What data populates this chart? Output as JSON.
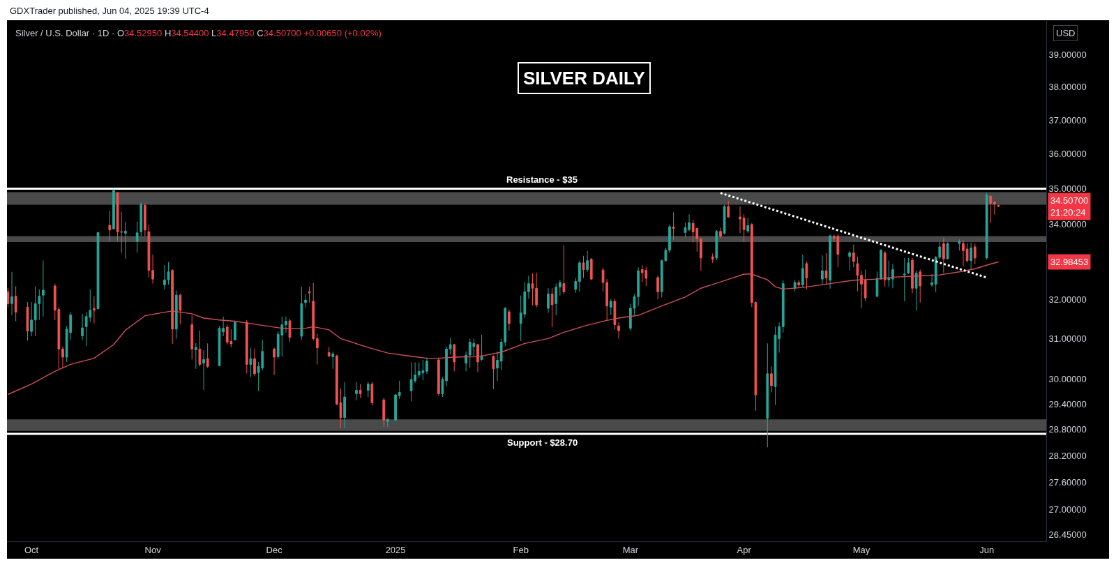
{
  "chart_data": {
    "type": "candlestick",
    "title": "SILVER DAILY",
    "subtitle": "Silver / U.S. Dollar · 1D · O34.52950 H34.54400 L34.47950 C34.50700 +0.00650 (+0.02%)",
    "annotations": [
      "GDXTrader published, Jun 04, 2025 19:39 UTC-4",
      "USD",
      "34.50700\n21:20:24",
      "32.98453"
    ],
    "x": [
      "2024-09-25",
      "2024-09-26",
      "2024-09-27",
      "2024-09-30",
      "2024-10-01",
      "2024-10-02",
      "2024-10-03",
      "2024-10-04",
      "2024-10-07",
      "2024-10-08",
      "2024-10-09",
      "2024-10-10",
      "2024-10-11",
      "2024-10-14",
      "2024-10-15",
      "2024-10-16",
      "2024-10-17",
      "2024-10-18",
      "2024-10-21",
      "2024-10-22",
      "2024-10-23",
      "2024-10-24",
      "2024-10-25",
      "2024-10-28",
      "2024-10-29",
      "2024-10-30",
      "2024-10-31",
      "2024-11-01",
      "2024-11-04",
      "2024-11-05",
      "2024-11-06",
      "2024-11-07",
      "2024-11-08",
      "2024-11-11",
      "2024-11-12",
      "2024-11-13",
      "2024-11-14",
      "2024-11-15",
      "2024-11-18",
      "2024-11-19",
      "2024-11-20",
      "2024-11-21",
      "2024-11-22",
      "2024-11-25",
      "2024-11-26",
      "2024-11-27",
      "2024-11-28",
      "2024-11-29",
      "2024-12-02",
      "2024-12-03",
      "2024-12-04",
      "2024-12-05",
      "2024-12-06",
      "2024-12-09",
      "2024-12-10",
      "2024-12-11",
      "2024-12-12",
      "2024-12-13",
      "2024-12-16",
      "2024-12-17",
      "2024-12-18",
      "2024-12-19",
      "2024-12-20",
      "2024-12-23",
      "2024-12-24",
      "2024-12-26",
      "2024-12-27",
      "2024-12-30",
      "2024-12-31",
      "2025-01-02",
      "2025-01-03",
      "2025-01-06",
      "2025-01-07",
      "2025-01-08",
      "2025-01-09",
      "2025-01-10",
      "2025-01-13",
      "2025-01-14",
      "2025-01-15",
      "2025-01-16",
      "2025-01-17",
      "2025-01-20",
      "2025-01-21",
      "2025-01-22",
      "2025-01-23",
      "2025-01-24",
      "2025-01-27",
      "2025-01-28",
      "2025-01-29",
      "2025-01-30",
      "2025-01-31",
      "2025-02-03",
      "2025-02-04",
      "2025-02-05",
      "2025-02-06",
      "2025-02-07",
      "2025-02-10",
      "2025-02-11",
      "2025-02-12",
      "2025-02-13",
      "2025-02-14",
      "2025-02-17",
      "2025-02-18",
      "2025-02-19",
      "2025-02-20",
      "2025-02-21",
      "2025-02-24",
      "2025-02-25",
      "2025-02-26",
      "2025-02-27",
      "2025-02-28",
      "2025-03-03",
      "2025-03-04",
      "2025-03-05",
      "2025-03-06",
      "2025-03-07",
      "2025-03-10",
      "2025-03-11",
      "2025-03-12",
      "2025-03-13",
      "2025-03-14",
      "2025-03-17",
      "2025-03-18",
      "2025-03-19",
      "2025-03-20",
      "2025-03-21",
      "2025-03-24",
      "2025-03-25",
      "2025-03-26",
      "2025-03-27",
      "2025-03-28",
      "2025-03-31",
      "2025-04-01",
      "2025-04-02",
      "2025-04-03",
      "2025-04-04",
      "2025-04-07",
      "2025-04-08",
      "2025-04-09",
      "2025-04-10",
      "2025-04-11",
      "2025-04-14",
      "2025-04-15",
      "2025-04-16",
      "2025-04-17",
      "2025-04-21",
      "2025-04-22",
      "2025-04-23",
      "2025-04-24",
      "2025-04-25",
      "2025-04-28",
      "2025-04-29",
      "2025-04-30",
      "2025-05-01",
      "2025-05-02",
      "2025-05-05",
      "2025-05-06",
      "2025-05-07",
      "2025-05-08",
      "2025-05-09",
      "2025-05-12",
      "2025-05-13",
      "2025-05-14",
      "2025-05-15",
      "2025-05-16",
      "2025-05-19",
      "2025-05-20",
      "2025-05-21",
      "2025-05-22",
      "2025-05-23",
      "2025-05-26",
      "2025-05-27",
      "2025-05-28",
      "2025-05-29",
      "2025-05-30",
      "2025-06-02",
      "2025-06-03",
      "2025-06-04",
      "2025-06-05"
    ],
    "ohlc": [
      [
        32.2,
        32.3,
        31.8,
        31.89
      ],
      [
        31.89,
        32.72,
        31.59,
        32.07
      ],
      [
        32.08,
        32.34,
        31.44,
        31.67
      ],
      [
        31.8,
        31.93,
        30.95,
        31.19
      ],
      [
        31.18,
        31.93,
        31.06,
        31.47
      ],
      [
        31.47,
        32.34,
        31.06,
        31.89
      ],
      [
        31.89,
        32.26,
        31.47,
        32.08
      ],
      [
        32.11,
        33.02,
        31.56,
        32.24
      ],
      [
        32.35,
        32.41,
        31.47,
        31.72
      ],
      [
        31.74,
        31.8,
        30.25,
        30.74
      ],
      [
        30.74,
        30.8,
        30.27,
        30.54
      ],
      [
        30.54,
        31.32,
        30.42,
        31.24
      ],
      [
        31.15,
        31.67,
        30.97,
        31.6
      ],
      [
        31.07,
        31.62,
        30.97,
        31.27
      ],
      [
        31.3,
        31.67,
        30.81,
        31.56
      ],
      [
        31.54,
        32.26,
        31.42,
        31.72
      ],
      [
        31.76,
        32.08,
        31.38,
        31.72
      ],
      [
        31.76,
        33.8,
        31.74,
        33.78
      ],
      [
        33.98,
        34.38,
        33.55,
        33.85
      ],
      [
        33.88,
        34.98,
        33.86,
        34.95
      ],
      [
        34.89,
        34.89,
        33.55,
        33.8
      ],
      [
        33.8,
        34.35,
        33.23,
        33.79
      ],
      [
        33.76,
        34.08,
        33.07,
        33.82
      ],
      [
        33.54,
        34.08,
        33.23,
        33.77
      ],
      [
        33.8,
        34.62,
        33.68,
        34.56
      ],
      [
        34.53,
        34.6,
        33.68,
        33.85
      ],
      [
        33.8,
        33.99,
        32.58,
        32.76
      ],
      [
        32.76,
        33.18,
        32.41,
        32.53
      ],
      [
        32.38,
        32.9,
        32.26,
        32.51
      ],
      [
        32.51,
        32.98,
        32.38,
        32.72
      ],
      [
        32.76,
        32.79,
        30.87,
        31.24
      ],
      [
        31.24,
        32.23,
        31.0,
        32.11
      ],
      [
        32.11,
        32.14,
        31.36,
        31.72
      ],
      [
        31.35,
        31.59,
        30.48,
        30.74
      ],
      [
        30.72,
        30.89,
        30.25,
        30.78
      ],
      [
        30.74,
        31.21,
        30.31,
        30.36
      ],
      [
        30.39,
        30.71,
        29.74,
        30.48
      ],
      [
        30.5,
        30.88,
        30.27,
        30.31
      ],
      [
        30.33,
        31.32,
        30.31,
        31.26
      ],
      [
        31.17,
        31.56,
        31.06,
        31.26
      ],
      [
        31.29,
        31.35,
        30.85,
        30.91
      ],
      [
        30.93,
        31.24,
        30.78,
        30.87
      ],
      [
        30.97,
        31.44,
        30.95,
        31.41
      ],
      [
        31.41,
        31.47,
        30.14,
        30.36
      ],
      [
        30.36,
        30.77,
        30.05,
        30.5
      ],
      [
        30.5,
        30.75,
        30.07,
        30.13
      ],
      [
        30.16,
        30.42,
        29.71,
        30.31
      ],
      [
        30.27,
        30.97,
        30.22,
        30.68
      ],
      [
        30.74,
        30.77,
        30.1,
        30.54
      ],
      [
        30.55,
        31.18,
        30.5,
        31.11
      ],
      [
        31.09,
        31.56,
        30.55,
        31.35
      ],
      [
        31.35,
        31.56,
        31.15,
        31.44
      ],
      [
        31.45,
        31.5,
        30.91,
        31.03
      ],
      [
        31.06,
        32.33,
        30.97,
        31.89
      ],
      [
        31.92,
        32.13,
        31.79,
        31.98
      ],
      [
        32.2,
        32.34,
        31.92,
        32.17
      ],
      [
        31.95,
        32.43,
        30.95,
        31.0
      ],
      [
        31.0,
        31.12,
        30.36,
        30.77
      ],
      [
        30.65,
        30.79,
        30.54,
        30.57
      ],
      [
        30.55,
        30.68,
        30.25,
        30.62
      ],
      [
        30.57,
        30.6,
        29.37,
        29.4
      ],
      [
        29.43,
        29.77,
        28.83,
        29.08
      ],
      [
        29.08,
        29.93,
        28.83,
        29.57
      ],
      [
        29.65,
        29.93,
        29.49,
        29.73
      ],
      [
        29.73,
        29.88,
        29.54,
        29.65
      ],
      [
        29.73,
        29.93,
        29.56,
        29.88
      ],
      [
        29.88,
        29.93,
        29.37,
        29.43
      ],
      [
        29.5,
        29.55,
        28.86,
        29.02
      ],
      [
        28.99,
        29.06,
        28.86,
        29.04
      ],
      [
        29.02,
        29.65,
        28.99,
        29.62
      ],
      [
        29.6,
        29.96,
        29.52,
        29.68
      ],
      [
        29.72,
        30.41,
        29.47,
        29.99
      ],
      [
        29.96,
        30.41,
        29.91,
        30.1
      ],
      [
        30.1,
        30.41,
        30.03,
        30.19
      ],
      [
        30.15,
        30.47,
        29.97,
        30.2
      ],
      [
        30.19,
        30.53,
        30.13,
        30.44
      ],
      [
        30.47,
        30.53,
        29.6,
        29.65
      ],
      [
        29.65,
        30.05,
        29.57,
        29.99
      ],
      [
        29.96,
        30.8,
        29.83,
        30.74
      ],
      [
        30.74,
        31.02,
        30.6,
        30.85
      ],
      [
        30.85,
        30.87,
        30.19,
        30.42
      ],
      [
        30.39,
        30.68,
        30.19,
        30.59
      ],
      [
        30.59,
        31.0,
        30.28,
        30.91
      ],
      [
        30.8,
        31.0,
        30.57,
        30.88
      ],
      [
        30.85,
        30.87,
        30.17,
        30.42
      ],
      [
        30.48,
        31.1,
        30.45,
        30.57
      ],
      [
        30.56,
        30.58,
        29.76,
        30.25
      ],
      [
        30.27,
        30.68,
        29.96,
        30.46
      ],
      [
        30.44,
        31.0,
        30.22,
        30.91
      ],
      [
        30.91,
        31.8,
        30.81,
        31.77
      ],
      [
        31.68,
        31.74,
        31.2,
        31.38
      ],
      [
        31.38,
        32.1,
        30.94,
        31.65
      ],
      [
        31.62,
        32.45,
        31.53,
        32.2
      ],
      [
        32.2,
        32.62,
        32.02,
        32.41
      ],
      [
        32.41,
        32.68,
        31.84,
        32.29
      ],
      [
        32.29,
        32.7,
        31.8,
        31.86
      ],
      [
        31.77,
        32.29,
        31.65,
        32.14
      ],
      [
        32.14,
        32.29,
        31.29,
        31.86
      ],
      [
        31.89,
        32.41,
        31.59,
        32.32
      ],
      [
        32.32,
        32.51,
        32.1,
        32.44
      ],
      [
        32.41,
        33.44,
        32.14,
        32.2
      ],
      [
        32.26,
        32.56,
        32.17,
        32.47
      ],
      [
        32.47,
        33.02,
        32.2,
        32.96
      ],
      [
        32.96,
        33.15,
        32.56,
        32.78
      ],
      [
        32.78,
        33.28,
        32.72,
        33.02
      ],
      [
        33.06,
        33.09,
        32.5,
        32.53
      ],
      [
        32.77,
        32.83,
        32.2,
        32.44
      ],
      [
        32.44,
        32.53,
        31.47,
        31.83
      ],
      [
        31.8,
        32.01,
        31.6,
        31.95
      ],
      [
        31.95,
        32.01,
        31.23,
        31.35
      ],
      [
        31.32,
        31.41,
        31.0,
        31.2
      ],
      [
        31.26,
        31.89,
        31.2,
        31.77
      ],
      [
        31.77,
        32.14,
        31.6,
        32.07
      ],
      [
        32.07,
        32.84,
        31.83,
        32.75
      ],
      [
        32.78,
        32.9,
        32.45,
        32.7
      ],
      [
        32.76,
        32.85,
        32.35,
        32.55
      ],
      [
        32.57,
        32.62,
        32.0,
        32.2
      ],
      [
        32.2,
        33.05,
        32.05,
        33.02
      ],
      [
        33.02,
        33.36,
        32.99,
        33.3
      ],
      [
        33.3,
        34.0,
        33.23,
        33.94
      ],
      [
        33.93,
        34.34,
        33.58,
        33.89
      ],
      [
        33.78,
        34.05,
        33.65,
        33.91
      ],
      [
        33.86,
        34.28,
        33.82,
        34.05
      ],
      [
        34.03,
        34.13,
        33.51,
        33.8
      ],
      [
        33.89,
        33.92,
        33.26,
        33.61
      ],
      [
        33.61,
        33.64,
        32.75,
        33.09
      ],
      [
        33.12,
        33.21,
        32.96,
        33.06
      ],
      [
        33.09,
        33.85,
        33.03,
        33.81
      ],
      [
        33.81,
        33.91,
        33.62,
        33.68
      ],
      [
        33.76,
        34.55,
        33.73,
        34.5
      ],
      [
        34.5,
        34.66,
        34.18,
        34.21
      ],
      [
        34.21,
        34.5,
        33.76,
        34.15
      ],
      [
        34.18,
        34.28,
        33.52,
        33.86
      ],
      [
        33.82,
        34.18,
        33.76,
        33.97
      ],
      [
        34.0,
        34.04,
        31.8,
        31.92
      ],
      [
        31.92,
        31.95,
        29.24,
        29.62
      ],
      [
        29.06,
        30.88,
        28.39,
        30.13
      ],
      [
        30.13,
        30.31,
        29.68,
        29.84
      ],
      [
        29.82,
        31.3,
        29.38,
        31.09
      ],
      [
        31.0,
        31.41,
        30.65,
        31.3
      ],
      [
        31.3,
        32.5,
        31.15,
        32.41
      ],
      [
        32.29,
        32.5,
        32.21,
        32.44
      ],
      [
        32.44,
        32.5,
        32.32,
        32.38
      ],
      [
        32.38,
        33.18,
        32.32,
        32.81
      ],
      [
        32.94,
        33.0,
        32.26,
        32.56
      ],
      [
        32.53,
        33.16,
        32.38,
        32.75
      ],
      [
        32.75,
        33.22,
        32.38,
        32.56
      ],
      [
        32.5,
        33.72,
        32.28,
        33.69
      ],
      [
        33.68,
        33.72,
        33.52,
        33.62
      ],
      [
        33.68,
        33.74,
        32.84,
        33.19
      ],
      [
        33.13,
        33.28,
        32.76,
        33.23
      ],
      [
        33.23,
        33.45,
        32.84,
        33.0
      ],
      [
        32.94,
        33.13,
        32.21,
        32.63
      ],
      [
        32.63,
        32.74,
        31.78,
        32.4
      ],
      [
        32.5,
        32.78,
        31.96,
        32.04
      ],
      [
        32.08,
        32.73,
        32.05,
        32.55
      ],
      [
        32.53,
        33.33,
        32.51,
        33.3
      ],
      [
        33.23,
        33.27,
        32.33,
        32.51
      ],
      [
        32.51,
        33.02,
        32.33,
        32.56
      ],
      [
        32.53,
        32.93,
        32.29,
        32.78
      ],
      [
        32.64,
        33.09,
        31.95,
        32.66
      ],
      [
        32.69,
        33.09,
        32.66,
        32.96
      ],
      [
        33.03,
        33.09,
        32.16,
        32.29
      ],
      [
        32.29,
        32.76,
        31.71,
        32.69
      ],
      [
        32.72,
        32.78,
        31.92,
        32.35
      ],
      [
        32.38,
        32.66,
        32.33,
        32.43
      ],
      [
        32.4,
        33.14,
        32.19,
        33.11
      ],
      [
        33.11,
        33.52,
        33.06,
        33.39
      ],
      [
        33.48,
        33.64,
        32.69,
        33.07
      ],
      [
        33.07,
        33.51,
        33.05,
        33.48
      ],
      [
        33.48,
        33.6,
        33.29,
        33.54
      ],
      [
        33.48,
        33.57,
        32.87,
        33.29
      ],
      [
        33.33,
        33.49,
        32.97,
        33.02
      ],
      [
        33.02,
        33.51,
        32.77,
        33.36
      ],
      [
        33.39,
        33.48,
        32.93,
        33.09
      ],
      [
        33.09,
        34.89,
        33.05,
        34.82
      ],
      [
        34.79,
        34.8,
        34.04,
        34.59
      ],
      [
        34.62,
        34.65,
        34.27,
        34.57
      ],
      [
        34.5295,
        34.544,
        34.4795,
        34.507
      ]
    ],
    "colors": [
      "#ef5350",
      "#26a69a",
      "#ef5350",
      "#ef5350",
      "#26a69a",
      "#26a69a",
      "#26a69a",
      "#26a69a",
      "#ef5350",
      "#ef5350",
      "#ef5350",
      "#26a69a",
      "#26a69a",
      "#26a69a",
      "#26a69a",
      "#26a69a",
      "#ef5350",
      "#26a69a",
      "#ef5350",
      "#26a69a",
      "#ef5350",
      "#ef5350",
      "#26a69a",
      "#26a69a",
      "#26a69a",
      "#ef5350",
      "#ef5350",
      "#ef5350",
      "#26a69a",
      "#26a69a",
      "#ef5350",
      "#26a69a",
      "#ef5350",
      "#ef5350",
      "#26a69a",
      "#ef5350",
      "#26a69a",
      "#ef5350",
      "#26a69a",
      "#26a69a",
      "#ef5350",
      "#ef5350",
      "#26a69a",
      "#ef5350",
      "#26a69a",
      "#ef5350",
      "#26a69a",
      "#26a69a",
      "#ef5350",
      "#26a69a",
      "#26a69a",
      "#26a69a",
      "#ef5350",
      "#26a69a",
      "#26a69a",
      "#ef5350",
      "#ef5350",
      "#ef5350",
      "#ef5350",
      "#26a69a",
      "#ef5350",
      "#ef5350",
      "#26a69a",
      "#26a69a",
      "#ef5350",
      "#26a69a",
      "#ef5350",
      "#ef5350",
      "#26a69a",
      "#26a69a",
      "#26a69a",
      "#26a69a",
      "#26a69a",
      "#26a69a",
      "#26a69a",
      "#26a69a",
      "#ef5350",
      "#26a69a",
      "#26a69a",
      "#26a69a",
      "#ef5350",
      "#26a69a",
      "#26a69a",
      "#26a69a",
      "#ef5350",
      "#26a69a",
      "#ef5350",
      "#26a69a",
      "#26a69a",
      "#26a69a",
      "#ef5350",
      "#26a69a",
      "#26a69a",
      "#26a69a",
      "#ef5350",
      "#ef5350",
      "#26a69a",
      "#ef5350",
      "#26a69a",
      "#26a69a",
      "#ef5350",
      "#26a69a",
      "#26a69a",
      "#ef5350",
      "#26a69a",
      "#ef5350",
      "#ef5350",
      "#ef5350",
      "#26a69a",
      "#ef5350",
      "#ef5350",
      "#26a69a",
      "#26a69a",
      "#26a69a",
      "#ef5350",
      "#ef5350",
      "#ef5350",
      "#26a69a",
      "#26a69a",
      "#26a69a",
      "#ef5350",
      "#26a69a",
      "#26a69a",
      "#ef5350",
      "#ef5350",
      "#ef5350",
      "#ef5350",
      "#26a69a",
      "#ef5350",
      "#26a69a",
      "#ef5350",
      "#ef5350",
      "#ef5350",
      "#26a69a",
      "#ef5350",
      "#ef5350",
      "#26a69a",
      "#ef5350",
      "#26a69a",
      "#26a69a",
      "#26a69a",
      "#26a69a",
      "#ef5350",
      "#26a69a",
      "#ef5350",
      "#26a69a",
      "#ef5350",
      "#26a69a",
      "#ef5350",
      "#ef5350",
      "#26a69a",
      "#ef5350",
      "#ef5350",
      "#ef5350",
      "#ef5350",
      "#26a69a",
      "#26a69a",
      "#ef5350",
      "#26a69a",
      "#26a69a",
      "#26a69a",
      "#26a69a",
      "#ef5350",
      "#26a69a",
      "#ef5350",
      "#26a69a",
      "#26a69a",
      "#26a69a",
      "#ef5350",
      "#26a69a",
      "#26a69a",
      "#ef5350",
      "#ef5350",
      "#26a69a",
      "#ef5350",
      "#26a69a",
      "#ef5350",
      "#ef5350",
      "#ef5350"
    ],
    "series": [
      {
        "type": "line",
        "color": "#d0505a",
        "x": [
          "2024-09-25",
          "2024-10-01",
          "2024-10-07",
          "2024-10-11",
          "2024-10-17",
          "2024-10-22",
          "2024-10-25",
          "2024-10-30",
          "2024-11-04",
          "2024-11-06",
          "2024-11-11",
          "2024-11-14",
          "2024-11-18",
          "2024-11-22",
          "2024-11-28",
          "2024-12-04",
          "2024-12-10",
          "2024-12-12",
          "2024-12-16",
          "2024-12-19",
          "2024-12-26",
          "2024-12-31",
          "2025-01-06",
          "2025-01-10",
          "2025-01-13",
          "2025-01-17",
          "2025-01-23",
          "2025-01-29",
          "2025-02-04",
          "2025-02-10",
          "2025-02-14",
          "2025-02-20",
          "2025-02-25",
          "2025-02-28",
          "2025-03-05",
          "2025-03-11",
          "2025-03-17",
          "2025-03-21",
          "2025-03-27",
          "2025-04-01",
          "2025-04-03",
          "2025-04-07",
          "2025-04-09",
          "2025-04-11",
          "2025-04-16",
          "2025-04-23",
          "2025-04-29",
          "2025-05-05",
          "2025-05-09",
          "2025-05-15",
          "2025-05-21",
          "2025-05-26",
          "2025-05-29",
          "2025-05-30",
          "2025-06-03",
          "2025-06-05"
        ],
        "values": [
          29.63,
          29.88,
          30.19,
          30.36,
          30.51,
          30.85,
          31.21,
          31.58,
          31.67,
          31.7,
          31.63,
          31.52,
          31.47,
          31.44,
          31.35,
          31.26,
          31.26,
          31.3,
          31.22,
          31.0,
          30.78,
          30.64,
          30.56,
          30.51,
          30.51,
          30.54,
          30.55,
          30.66,
          30.88,
          31.0,
          31.16,
          31.34,
          31.46,
          31.52,
          31.59,
          31.83,
          32.06,
          32.29,
          32.49,
          32.66,
          32.66,
          32.51,
          32.33,
          32.27,
          32.31,
          32.41,
          32.5,
          32.53,
          32.58,
          32.61,
          32.64,
          32.72,
          32.78,
          32.8,
          32.93,
          32.98453
        ]
      },
      {
        "type": "line",
        "color": "#ffffff",
        "line_style": "dotted",
        "x": [
          "2025-03-26",
          "2025-06-02"
        ],
        "values": [
          34.88,
          32.57
        ]
      }
    ],
    "ref_lines": [
      {
        "axis": "y",
        "value": 35,
        "label": "Resistance - $35",
        "color": "#ffffff"
      },
      {
        "axis": "y",
        "value": 28.7,
        "label": "Support - $28.70",
        "color": "#ffffff"
      }
    ],
    "bands": [
      {
        "axis": "y",
        "from": 34.55,
        "to": 34.9,
        "color": "#4a4a4a"
      },
      {
        "axis": "y",
        "from": 28.77,
        "to": 29.04,
        "color": "#4a4a4a"
      },
      {
        "axis": "y",
        "from": 33.52,
        "to": 33.68,
        "color": "#4a4a4a"
      }
    ],
    "log": true,
    "xlim": [
      "2024-09-24T18:00",
      "2025-06-17T05:00"
    ],
    "xticks": [
      {
        "value": "2024-10-01",
        "label": "Oct"
      },
      {
        "value": "2024-11-01",
        "label": "Nov"
      },
      {
        "value": "2024-12-02",
        "label": "Dec"
      },
      {
        "value": "2025-01-02",
        "label": "2025"
      },
      {
        "value": "2025-02-03",
        "label": "Feb"
      },
      {
        "value": "2025-03-03",
        "label": "Mar"
      },
      {
        "value": "2025-04-01",
        "label": "Apr"
      },
      {
        "value": "2025-05-01",
        "label": "May"
      },
      {
        "value": "2025-06-02",
        "label": "Jun"
      }
    ],
    "ylim": [
      26.31,
      40.09
    ],
    "yticks": [
      {
        "value": 39,
        "label": "39.00000"
      },
      {
        "value": 38,
        "label": "38.00000"
      },
      {
        "value": 37,
        "label": "37.00000"
      },
      {
        "value": 36,
        "label": "36.00000"
      },
      {
        "value": 35,
        "label": "35.00000"
      },
      {
        "value": 34,
        "label": "34.00000"
      },
      {
        "value": 32,
        "label": "32.00000"
      },
      {
        "value": 31,
        "label": "31.00000"
      },
      {
        "value": 30,
        "label": "30.00000"
      },
      {
        "value": 29.4,
        "label": "29.40000"
      },
      {
        "value": 28.8,
        "label": "28.80000"
      },
      {
        "value": 28.2,
        "label": "28.20000"
      },
      {
        "value": 27.6,
        "label": "27.60000"
      },
      {
        "value": 27,
        "label": "27.00000"
      },
      {
        "value": 26.45,
        "label": "26.45000"
      }
    ]
  }
}
